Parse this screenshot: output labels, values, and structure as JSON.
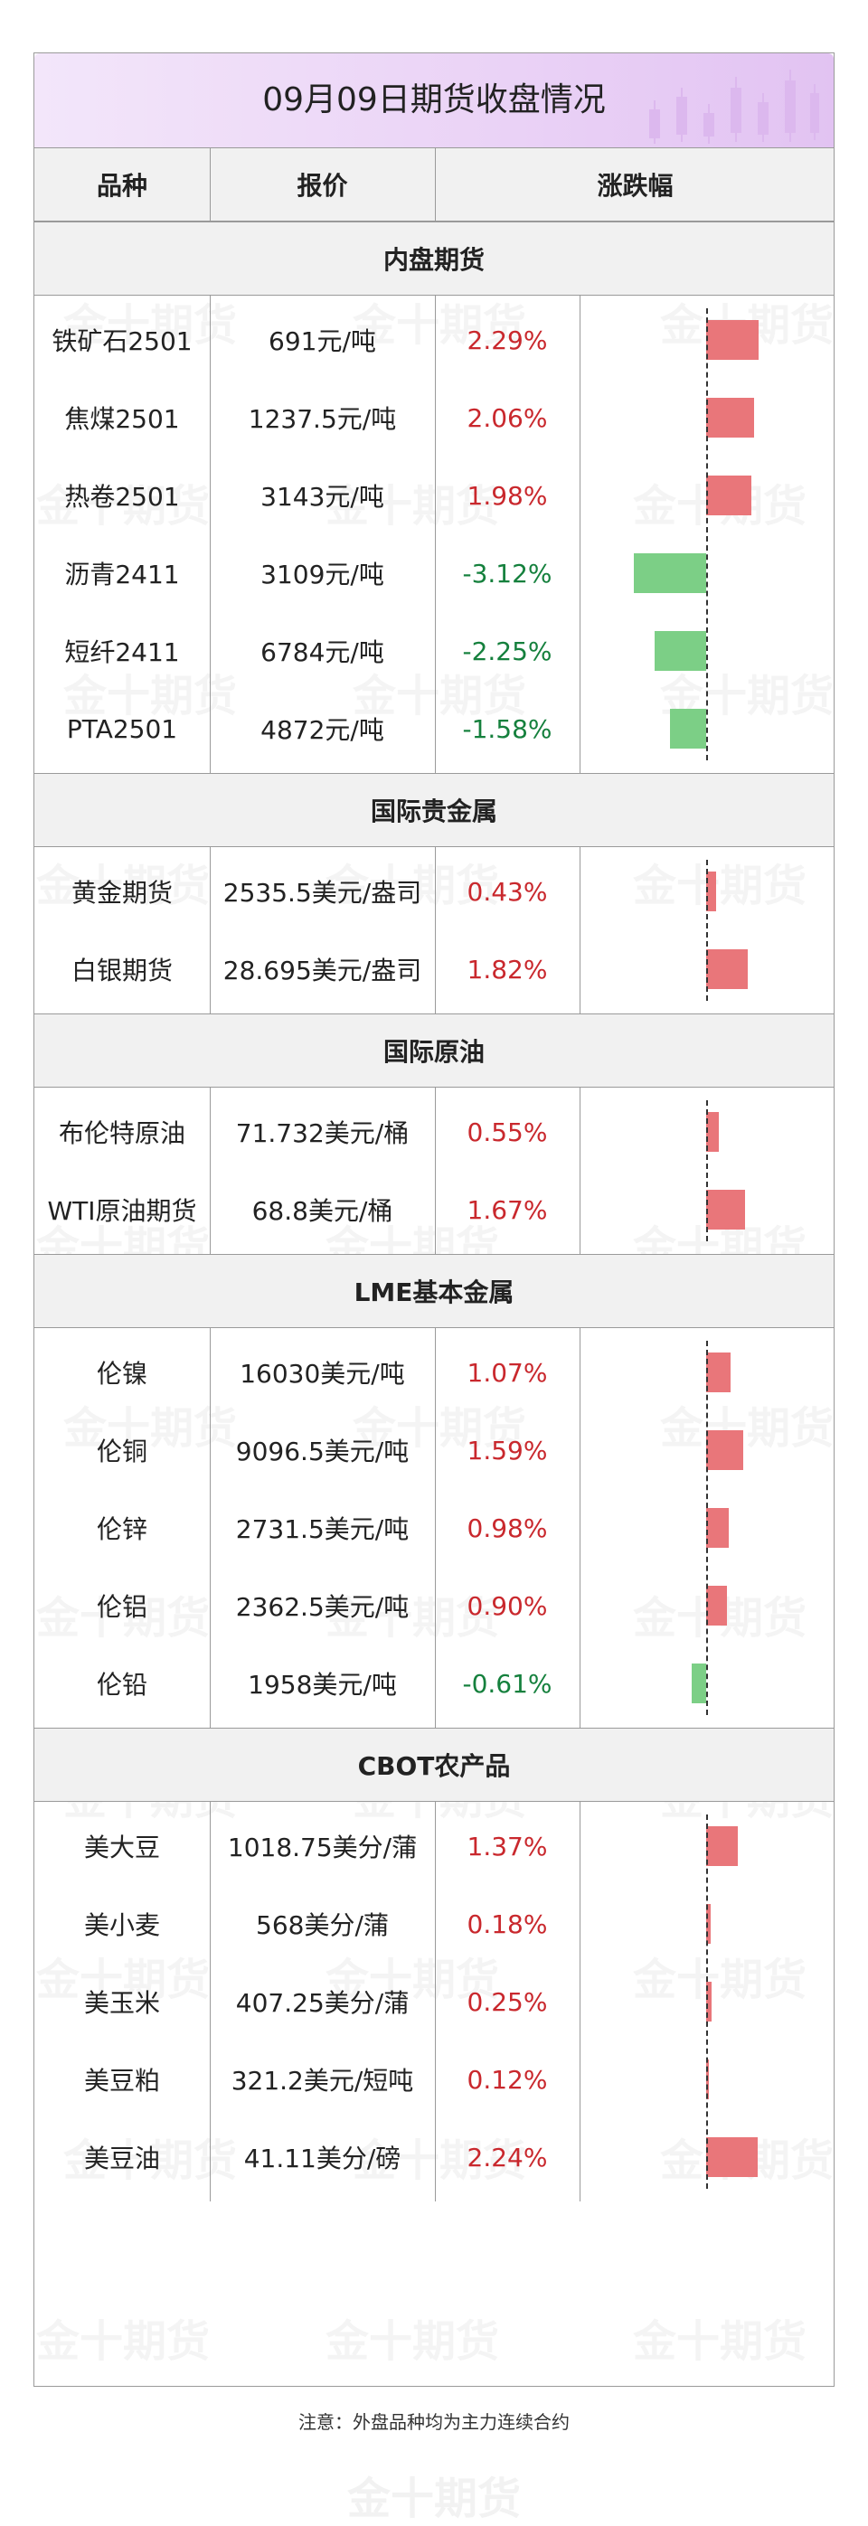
{
  "title": "09月09日期货收盘情况",
  "headers": {
    "variety": "品种",
    "price": "报价",
    "change": "涨跌幅"
  },
  "watermark": "金十期货",
  "colors": {
    "up": "#c9282d",
    "down": "#15803d",
    "bar_up": "#e9767a",
    "bar_down": "#7ccf86",
    "title_bg": "#ead2f6"
  },
  "sections": [
    {
      "name": "内盘期货",
      "rows": [
        {
          "variety": "铁矿石2501",
          "price": "691元/吨",
          "change": "2.29%",
          "value": 2.29
        },
        {
          "variety": "焦煤2501",
          "price": "1237.5元/吨",
          "change": "2.06%",
          "value": 2.06
        },
        {
          "variety": "热卷2501",
          "price": "3143元/吨",
          "change": "1.98%",
          "value": 1.98
        },
        {
          "variety": "沥青2411",
          "price": "3109元/吨",
          "change": "-3.12%",
          "value": -3.12
        },
        {
          "variety": "短纤2411",
          "price": "6784元/吨",
          "change": "-2.25%",
          "value": -2.25
        },
        {
          "variety": "PTA2501",
          "price": "4872元/吨",
          "change": "-1.58%",
          "value": -1.58
        }
      ]
    },
    {
      "name": "国际贵金属",
      "rows": [
        {
          "variety": "黄金期货",
          "price": "2535.5美元/盎司",
          "change": "0.43%",
          "value": 0.43
        },
        {
          "variety": "白银期货",
          "price": "28.695美元/盎司",
          "change": "1.82%",
          "value": 1.82
        }
      ]
    },
    {
      "name": "国际原油",
      "rows": [
        {
          "variety": "布伦特原油",
          "price": "71.732美元/桶",
          "change": "0.55%",
          "value": 0.55
        },
        {
          "variety": "WTI原油期货",
          "price": "68.8美元/桶",
          "change": "1.67%",
          "value": 1.67
        }
      ]
    },
    {
      "name": "LME基本金属",
      "rows": [
        {
          "variety": "伦镍",
          "price": "16030美元/吨",
          "change": "1.07%",
          "value": 1.07
        },
        {
          "variety": "伦铜",
          "price": "9096.5美元/吨",
          "change": "1.59%",
          "value": 1.59
        },
        {
          "variety": "伦锌",
          "price": "2731.5美元/吨",
          "change": "0.98%",
          "value": 0.98
        },
        {
          "variety": "伦铝",
          "price": "2362.5美元/吨",
          "change": "0.90%",
          "value": 0.9
        },
        {
          "variety": "伦铅",
          "price": "1958美元/吨",
          "change": "-0.61%",
          "value": -0.61
        }
      ]
    },
    {
      "name": "CBOT农产品",
      "rows": [
        {
          "variety": "美大豆",
          "price": "1018.75美分/蒲",
          "change": "1.37%",
          "value": 1.37
        },
        {
          "variety": "美小麦",
          "price": "568美分/蒲",
          "change": "0.18%",
          "value": 0.18
        },
        {
          "variety": "美玉米",
          "price": "407.25美分/蒲",
          "change": "0.25%",
          "value": 0.25
        },
        {
          "variety": "美豆粕",
          "price": "321.2美元/短吨",
          "change": "0.12%",
          "value": 0.12
        },
        {
          "variety": "美豆油",
          "price": "41.11美分/磅",
          "change": "2.24%",
          "value": 2.24
        }
      ]
    }
  ],
  "note": "注意：外盘品种均为主力连续合约"
}
